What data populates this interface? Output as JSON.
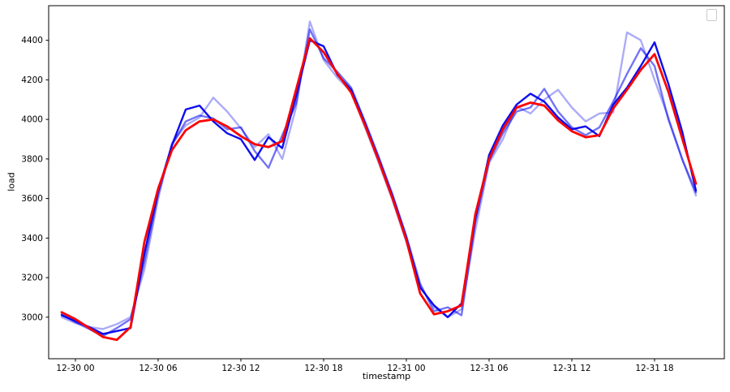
{
  "chart_data": {
    "type": "line",
    "title": "",
    "xlabel": "timestamp",
    "ylabel": "load",
    "grid": false,
    "legend": {
      "visible": true,
      "entries": [],
      "position": "upper right"
    },
    "xlim_hours": [
      -1.94,
      47.06
    ],
    "ylim": [
      2790,
      4575
    ],
    "y_ticks": [
      3000,
      3200,
      3400,
      3600,
      3800,
      4000,
      4200,
      4400
    ],
    "x_ticks": [
      {
        "hours": 0,
        "label": "12-30 00"
      },
      {
        "hours": 6,
        "label": "12-30 06"
      },
      {
        "hours": 12,
        "label": "12-30 12"
      },
      {
        "hours": 18,
        "label": "12-30 18"
      },
      {
        "hours": 24,
        "label": "12-31 00"
      },
      {
        "hours": 30,
        "label": "12-31 06"
      },
      {
        "hours": 36,
        "label": "12-31 12"
      },
      {
        "hours": 42,
        "label": "12-31 18"
      }
    ],
    "x_hours": [
      -1,
      0,
      1,
      2,
      3,
      4,
      5,
      6,
      7,
      8,
      9,
      10,
      11,
      12,
      13,
      14,
      15,
      16,
      17,
      18,
      19,
      20,
      21,
      22,
      23,
      24,
      25,
      26,
      27,
      28,
      29,
      30,
      31,
      32,
      33,
      34,
      35,
      36,
      37,
      38,
      39,
      40,
      41,
      42,
      43,
      44,
      45
    ],
    "timestamps": [
      "12-29 23",
      "12-30 00",
      "12-30 01",
      "12-30 02",
      "12-30 03",
      "12-30 04",
      "12-30 05",
      "12-30 06",
      "12-30 07",
      "12-30 08",
      "12-30 09",
      "12-30 10",
      "12-30 11",
      "12-30 12",
      "12-30 13",
      "12-30 14",
      "12-30 15",
      "12-30 16",
      "12-30 17",
      "12-30 18",
      "12-30 19",
      "12-30 20",
      "12-30 21",
      "12-30 22",
      "12-30 23",
      "12-31 00",
      "12-31 01",
      "12-31 02",
      "12-31 03",
      "12-31 04",
      "12-31 05",
      "12-31 06",
      "12-31 07",
      "12-31 08",
      "12-31 09",
      "12-31 10",
      "12-31 11",
      "12-31 12",
      "12-31 13",
      "12-31 14",
      "12-31 15",
      "12-31 16",
      "12-31 17",
      "12-31 18",
      "12-31 19",
      "12-31 20",
      "12-31 21"
    ],
    "series": [
      {
        "name": "blue-line-light",
        "color": "#0000ee",
        "alpha": 0.33,
        "width": 2.4,
        "values": [
          3000,
          2970,
          2950,
          2940,
          2965,
          3000,
          3240,
          3600,
          3880,
          3970,
          4010,
          4110,
          4040,
          3955,
          3860,
          3925,
          3800,
          4060,
          4495,
          4300,
          4210,
          4140,
          3960,
          3780,
          3590,
          3380,
          3155,
          3050,
          3000,
          3040,
          3440,
          3780,
          3900,
          4065,
          4030,
          4100,
          4150,
          4060,
          3990,
          4030,
          4035,
          4440,
          4400,
          4200,
          4010,
          3800,
          3615
        ]
      },
      {
        "name": "blue-line-medium",
        "color": "#0000ee",
        "alpha": 0.55,
        "width": 2.4,
        "values": [
          3015,
          2975,
          2940,
          2905,
          2945,
          2990,
          3280,
          3620,
          3870,
          3990,
          4020,
          4005,
          3950,
          3960,
          3840,
          3755,
          3920,
          4080,
          4455,
          4310,
          4240,
          4160,
          3990,
          3810,
          3620,
          3410,
          3170,
          3030,
          3050,
          3010,
          3480,
          3790,
          3930,
          4040,
          4060,
          4155,
          4040,
          3960,
          3920,
          3960,
          4090,
          4230,
          4360,
          4270,
          4000,
          3800,
          3630
        ]
      },
      {
        "name": "blue-line-dark",
        "color": "#0000ee",
        "alpha": 0.95,
        "width": 2.4,
        "values": [
          3010,
          2980,
          2950,
          2915,
          2930,
          2945,
          3320,
          3640,
          3870,
          4050,
          4070,
          3990,
          3930,
          3900,
          3795,
          3910,
          3855,
          4120,
          4400,
          4370,
          4225,
          4150,
          3980,
          3800,
          3610,
          3400,
          3150,
          3060,
          3000,
          3070,
          3500,
          3820,
          3970,
          4075,
          4130,
          4090,
          4010,
          3950,
          3965,
          3915,
          4075,
          4160,
          4270,
          4390,
          4180,
          3940,
          3640
        ]
      },
      {
        "name": "red-line",
        "color": "#ff0000",
        "alpha": 1.0,
        "width": 2.8,
        "values": [
          3025,
          2990,
          2945,
          2900,
          2885,
          2950,
          3380,
          3650,
          3845,
          3945,
          3990,
          4000,
          3965,
          3915,
          3875,
          3860,
          3890,
          4150,
          4410,
          4340,
          4230,
          4135,
          3970,
          3790,
          3600,
          3390,
          3120,
          3015,
          3030,
          3060,
          3520,
          3800,
          3950,
          4060,
          4085,
          4070,
          3995,
          3940,
          3910,
          3920,
          4055,
          4150,
          4250,
          4330,
          4140,
          3905,
          3675
        ]
      }
    ]
  }
}
